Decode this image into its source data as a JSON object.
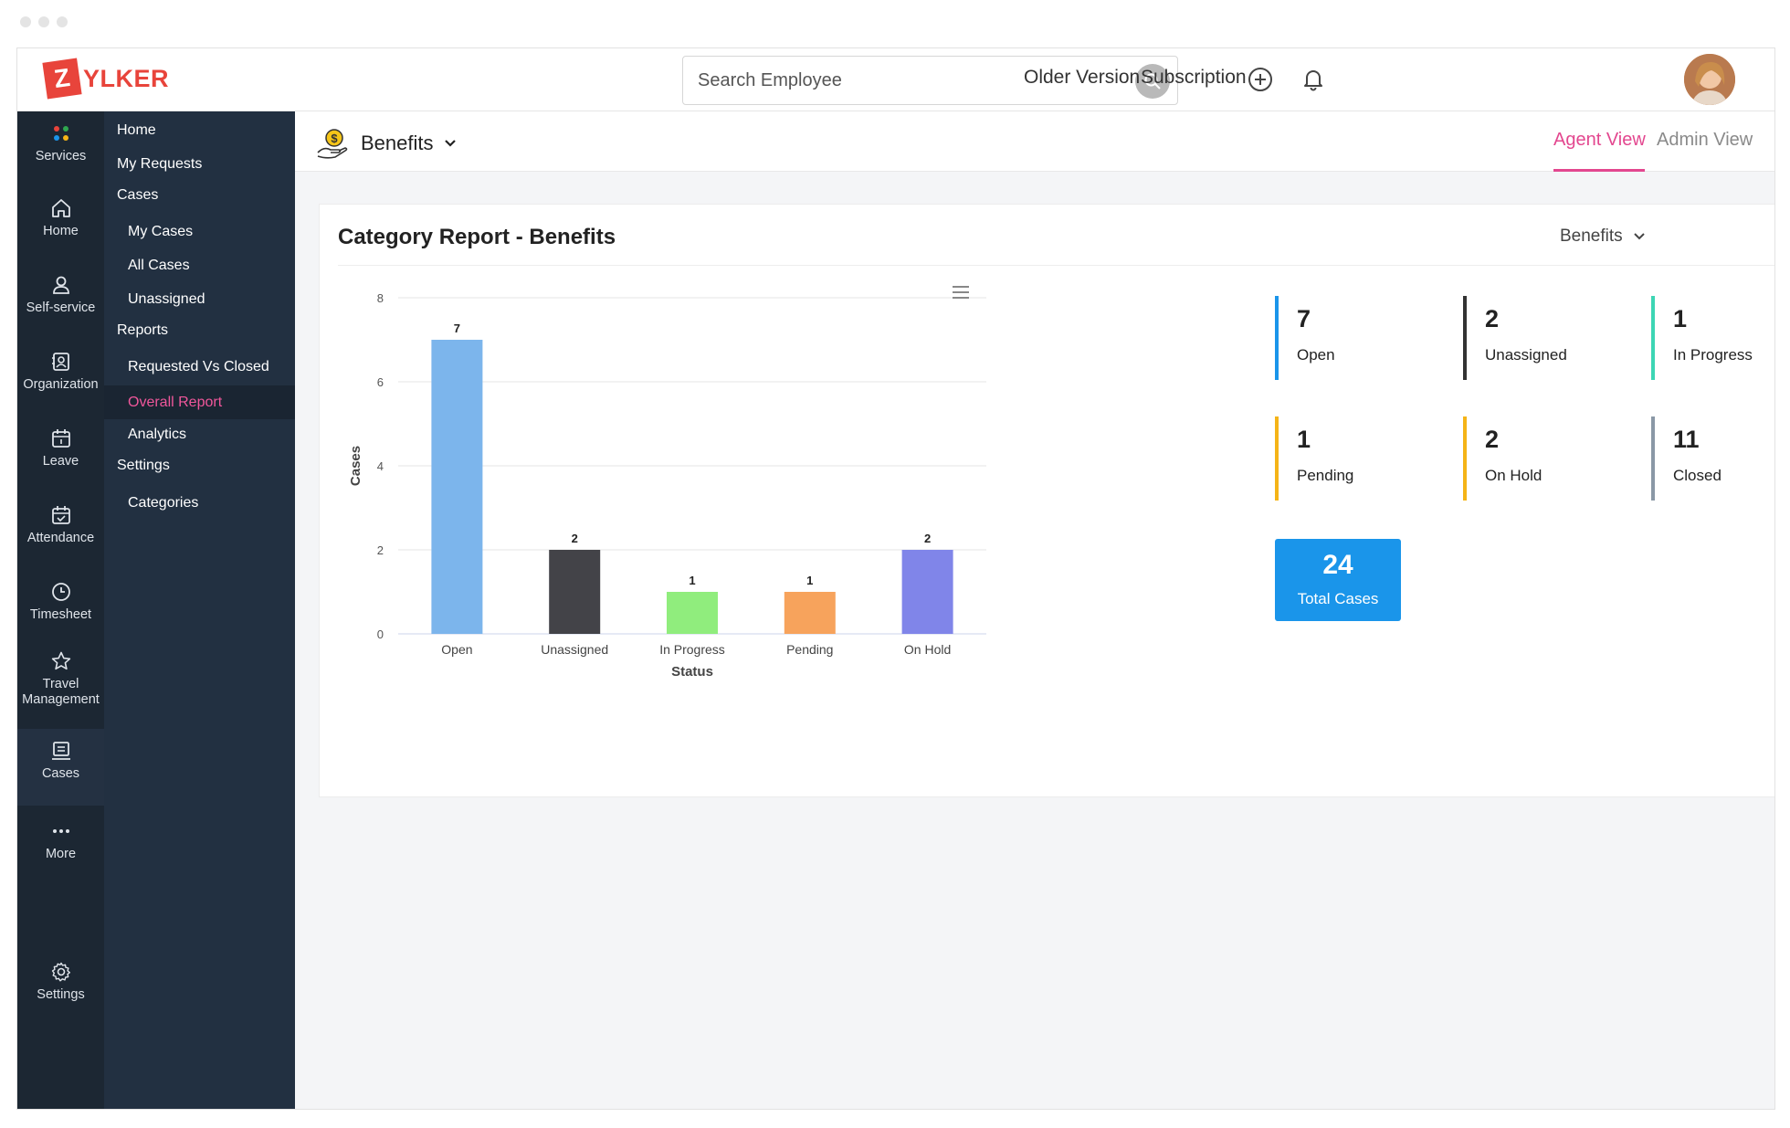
{
  "logo": {
    "letter": "Z",
    "text": "YLKER"
  },
  "search": {
    "placeholder": "Search Employee"
  },
  "topbar": {
    "older_version": "Older Version",
    "subscription": "Subscription"
  },
  "rail": [
    {
      "label": "Services",
      "icon": "services-icon"
    },
    {
      "label": "Home",
      "icon": "home-icon"
    },
    {
      "label": "Self-service",
      "icon": "user-icon"
    },
    {
      "label": "Organization",
      "icon": "organization-icon"
    },
    {
      "label": "Leave",
      "icon": "calendar-icon"
    },
    {
      "label": "Attendance",
      "icon": "calendar-check-icon"
    },
    {
      "label": "Timesheet",
      "icon": "clock-icon"
    },
    {
      "label": "Travel",
      "label2": "Management",
      "icon": "star-icon"
    },
    {
      "label": "Cases",
      "icon": "cases-icon"
    },
    {
      "label": "More",
      "icon": "more-icon"
    },
    {
      "label": "Settings",
      "icon": "gear-icon"
    }
  ],
  "subnav": [
    {
      "label": "Home"
    },
    {
      "label": "My Requests"
    },
    {
      "label": "Cases"
    },
    {
      "label": "My Cases"
    },
    {
      "label": "All Cases"
    },
    {
      "label": "Unassigned"
    },
    {
      "label": "Reports"
    },
    {
      "label": "Requested Vs Closed"
    },
    {
      "label": "Overall Report"
    },
    {
      "label": "Analytics"
    },
    {
      "label": "Settings"
    },
    {
      "label": "Categories"
    }
  ],
  "module": {
    "title": "Benefits"
  },
  "views": {
    "agent": "Agent View",
    "admin": "Admin View"
  },
  "card": {
    "title": "Category Report - Benefits",
    "filter": "Benefits"
  },
  "colors": {
    "accent": "#e3478f",
    "nav_bg": "#1c2733",
    "subnav_bg": "#223041",
    "total_bg": "#1a95ea"
  },
  "chart_data": {
    "type": "bar",
    "categories": [
      "Open",
      "Unassigned",
      "In Progress",
      "Pending",
      "On Hold"
    ],
    "values": [
      7,
      2,
      1,
      1,
      2
    ],
    "colors": [
      "#7cb5ec",
      "#434348",
      "#90ed7d",
      "#f7a35c",
      "#8085e9"
    ],
    "xlabel": "Status",
    "ylabel": "Cases",
    "ylim": [
      0,
      8
    ],
    "yticks": [
      0,
      2,
      4,
      6,
      8
    ],
    "grid": true,
    "data_labels": true
  },
  "stats": [
    {
      "value": "7",
      "label": "Open",
      "color": "#1a95ea"
    },
    {
      "value": "2",
      "label": "Unassigned",
      "color": "#333333"
    },
    {
      "value": "1",
      "label": "In Progress",
      "color": "#3dd6b4"
    },
    {
      "value": "1",
      "label": "Pending",
      "color": "#f5b417"
    },
    {
      "value": "2",
      "label": "On Hold",
      "color": "#f5b417"
    },
    {
      "value": "11",
      "label": "Closed",
      "color": "#8a98a6"
    }
  ],
  "total": {
    "value": "24",
    "label": "Total Cases"
  }
}
